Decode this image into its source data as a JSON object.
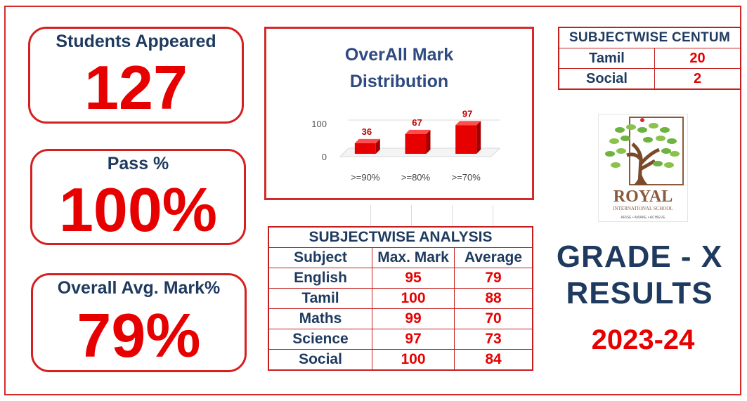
{
  "stats": {
    "students_label": "Students Appeared",
    "students_value": "127",
    "pass_label": "Pass %",
    "pass_value": "100%",
    "avg_label": "Overall Avg. Mark%",
    "avg_value": "79%"
  },
  "chart_data": {
    "type": "bar",
    "title_line1": "OverAll Mark",
    "title_line2": "Distribution",
    "categories": [
      ">=90%",
      ">=80%",
      ">=70%"
    ],
    "values": [
      36,
      67,
      97
    ],
    "yticks": [
      "100",
      "0"
    ],
    "ylim": [
      0,
      100
    ],
    "grid": true,
    "legend": "none",
    "bar_color": "#e60000"
  },
  "centum": {
    "header": "SUBJECTWISE CENTUM",
    "rows": [
      {
        "subject": "Tamil",
        "count": "20"
      },
      {
        "subject": "Social",
        "count": "2"
      }
    ]
  },
  "analysis": {
    "header": "SUBJECTWISE ANALYSIS",
    "columns": [
      "Subject",
      "Max. Mark",
      "Average"
    ],
    "rows": [
      {
        "subject": "English",
        "max": "95",
        "avg": "79"
      },
      {
        "subject": "Tamil",
        "max": "100",
        "avg": "88"
      },
      {
        "subject": "Maths",
        "max": "99",
        "avg": "70"
      },
      {
        "subject": "Science",
        "max": "97",
        "avg": "73"
      },
      {
        "subject": "Social",
        "max": "100",
        "avg": "84"
      }
    ]
  },
  "logo": {
    "name": "ROYAL",
    "subtitle": "INTERNATIONAL SCHOOL",
    "tagline": "ARISE • AWAKE • ACHIEVE",
    "icon": "tree-icon"
  },
  "result": {
    "grade_line": "GRADE - X",
    "results_line": "RESULTS",
    "year": "2023-24"
  },
  "colors": {
    "accent_red": "#e60000",
    "border_red": "#d42a2a",
    "navy": "#1f3a5f",
    "chart_title": "#2e4a80"
  }
}
